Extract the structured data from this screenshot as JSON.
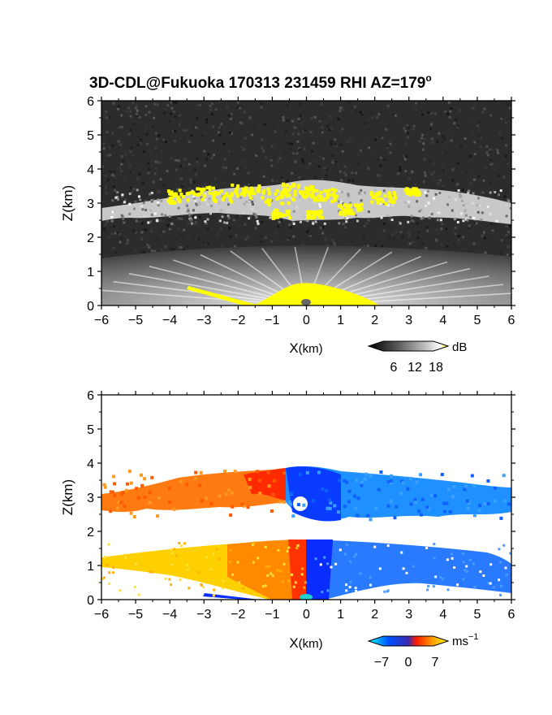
{
  "title": "3D-CDL@Fukuoka 170313 231459 RHI AZ=179",
  "title_superscript": "o",
  "chart_data": [
    {
      "type": "heatmap",
      "panel": "top",
      "xlabel_main": "X",
      "xlabel_unit": "(km)",
      "ylabel": "Z(km)",
      "xlim": [
        -6,
        6
      ],
      "ylim": [
        0,
        6
      ],
      "xticks": [
        "-6",
        "-5",
        "-4",
        "-3",
        "-2",
        "-1",
        "0",
        "1",
        "2",
        "3",
        "4",
        "5",
        "6"
      ],
      "yticks": [
        "0",
        "1",
        "2",
        "3",
        "4",
        "5",
        "6"
      ],
      "colorbar": {
        "unit": "dB",
        "ticks": [
          "6",
          "12",
          "18"
        ],
        "range": [
          0,
          20
        ],
        "colors": [
          "#000000",
          "#555555",
          "#aaaaaa",
          "#ffffff",
          "#ffff00"
        ]
      },
      "layers": [
        {
          "name": "cloud layer",
          "z_bottom": 2.4,
          "z_top": 3.3,
          "x_range": [
            -6,
            6
          ],
          "value_db": 12
        },
        {
          "name": "boundary layer",
          "z_bottom": 0,
          "z_top": 1.6,
          "x_range": [
            -6,
            6
          ],
          "value_db": 10
        },
        {
          "name": "strong echo near radar",
          "z_bottom": 0,
          "z_top": 0.6,
          "x_range": [
            -1.3,
            2
          ],
          "value_db": 20
        }
      ],
      "grid": false
    },
    {
      "type": "heatmap",
      "panel": "bottom",
      "xlabel_main": "X",
      "xlabel_unit": "(km)",
      "ylabel": "Z(km)",
      "xlim": [
        -6,
        6
      ],
      "ylim": [
        0,
        6
      ],
      "xticks": [
        "-6",
        "-5",
        "-4",
        "-3",
        "-2",
        "-1",
        "0",
        "1",
        "2",
        "3",
        "4",
        "5",
        "6"
      ],
      "yticks": [
        "0",
        "1",
        "2",
        "3",
        "4",
        "5",
        "6"
      ],
      "colorbar": {
        "unit": "ms",
        "unit_superscript": "−1",
        "ticks": [
          "−7",
          "0",
          "7"
        ],
        "range": [
          -10,
          10
        ],
        "colors": [
          "#00ffff",
          "#0044ff",
          "#ff0000",
          "#ff8800",
          "#ffff00"
        ]
      },
      "layers": [
        {
          "name": "cloud layer, x<0",
          "x_range": [
            -6,
            -0.5
          ],
          "z_bottom": 2.6,
          "z_top": 3.7,
          "velocity_ms": 6
        },
        {
          "name": "cloud layer, x>0",
          "x_range": [
            -0.5,
            6
          ],
          "z_bottom": 2.4,
          "z_top": 3.8,
          "velocity_ms": -6
        },
        {
          "name": "boundary layer, x<0",
          "x_range": [
            -6,
            0
          ],
          "z_bottom": 0,
          "z_top": 1.7,
          "velocity_ms": 5
        },
        {
          "name": "boundary layer, x>0",
          "x_range": [
            0,
            6
          ],
          "z_bottom": 0,
          "z_top": 1.7,
          "velocity_ms": -5
        }
      ],
      "grid": false
    }
  ]
}
